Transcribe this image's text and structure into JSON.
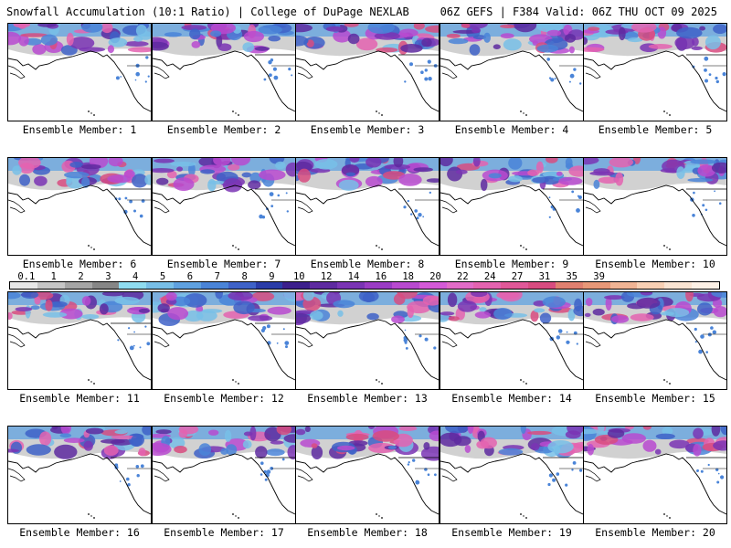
{
  "header": {
    "title": "Snowfall Accumulation (10:1 Ratio) | College of DuPage NEXLAB",
    "run_info": "06Z GEFS | F384 Valid: 06Z THU OCT 09 2025"
  },
  "colorbar": {
    "ticks": [
      "0.1",
      "1",
      "2",
      "3",
      "4",
      "5",
      "6",
      "7",
      "8",
      "9",
      "10",
      "12",
      "14",
      "16",
      "18",
      "20",
      "22",
      "24",
      "27",
      "31",
      "35",
      "39"
    ],
    "colors": [
      "#e8e8e8",
      "#c6c6c6",
      "#a5a5a5",
      "#868686",
      "#8fdcf0",
      "#78bfe8",
      "#5fa1e0",
      "#4a84d8",
      "#3e62c8",
      "#2a3ca8",
      "#3c1f8c",
      "#5e2aa0",
      "#7a34b4",
      "#9a3cc4",
      "#b84ad0",
      "#d45ad8",
      "#e26cc8",
      "#e463b0",
      "#e05898",
      "#d84c80",
      "#e08070",
      "#e89878",
      "#f0b494",
      "#f8d0b4",
      "#fae4d2",
      "#fdf1e6"
    ]
  },
  "panels": [
    {
      "label": "Ensemble Member: 1"
    },
    {
      "label": "Ensemble Member: 2"
    },
    {
      "label": "Ensemble Member: 3"
    },
    {
      "label": "Ensemble Member: 4"
    },
    {
      "label": "Ensemble Member: 5"
    },
    {
      "label": "Ensemble Member: 6"
    },
    {
      "label": "Ensemble Member: 7"
    },
    {
      "label": "Ensemble Member: 8"
    },
    {
      "label": "Ensemble Member: 9"
    },
    {
      "label": "Ensemble Member: 10"
    },
    {
      "label": "Ensemble Member: 11"
    },
    {
      "label": "Ensemble Member: 12"
    },
    {
      "label": "Ensemble Member: 13"
    },
    {
      "label": "Ensemble Member: 14"
    },
    {
      "label": "Ensemble Member: 15"
    },
    {
      "label": "Ensemble Member: 16"
    },
    {
      "label": "Ensemble Member: 17"
    },
    {
      "label": "Ensemble Member: 18"
    },
    {
      "label": "Ensemble Member: 19"
    },
    {
      "label": "Ensemble Member: 20"
    }
  ]
}
